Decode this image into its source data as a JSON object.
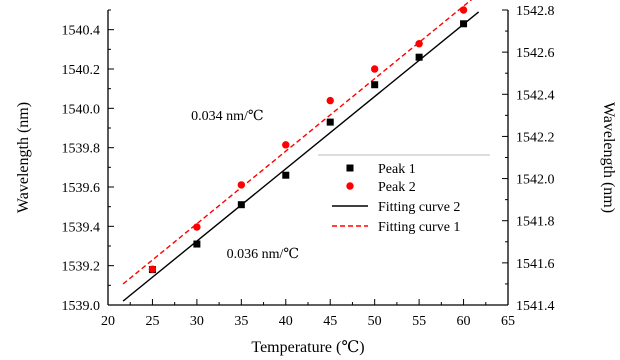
{
  "chart_data": {
    "type": "scatter",
    "title": "",
    "xlabel": "Temperature (℃)",
    "ylabel": "Wavelength (nm)",
    "y2label": "Wavelength (nm)",
    "xlim": [
      20,
      65
    ],
    "ylim": [
      1539.0,
      1540.5
    ],
    "y2lim": [
      1541.4,
      1542.8
    ],
    "grid": false,
    "legend_position": "center-right",
    "x_ticks": [
      "20",
      "25",
      "30",
      "35",
      "40",
      "45",
      "50",
      "55",
      "60",
      "65"
    ],
    "y_ticks": [
      "1539.0",
      "1539.2",
      "1539.4",
      "1539.6",
      "1539.8",
      "1540.0",
      "1540.2",
      "1540.4"
    ],
    "y2_ticks": [
      "1541.4",
      "1541.6",
      "1541.8",
      "1542.0",
      "1542.2",
      "1542.4",
      "1542.6",
      "1542.8"
    ],
    "series": [
      {
        "name": "Peak 1",
        "kind": "scatter",
        "marker": "square",
        "color": "#000000",
        "axis": "left",
        "x": [
          25,
          30,
          35,
          40,
          45,
          50,
          55,
          60
        ],
        "y": [
          1539.18,
          1539.31,
          1539.51,
          1539.66,
          1539.93,
          1540.12,
          1540.26,
          1540.43
        ]
      },
      {
        "name": "Peak 2",
        "kind": "scatter",
        "marker": "circle",
        "color": "#ff0000",
        "axis": "right",
        "x": [
          25,
          30,
          35,
          40,
          45,
          50,
          55,
          60
        ],
        "y": [
          1541.57,
          1541.77,
          1541.97,
          1542.16,
          1542.37,
          1542.52,
          1542.64,
          1542.8
        ]
      },
      {
        "name": "Fitting curve 2",
        "kind": "line",
        "style": "solid",
        "color": "#000000",
        "axis": "left",
        "x": [
          21.7,
          61.7
        ],
        "y": [
          1539.02,
          1540.49
        ]
      },
      {
        "name": "Fitting curve 1",
        "kind": "line",
        "style": "dashed",
        "color": "#ff0000",
        "axis": "right",
        "x": [
          21.7,
          61.5
        ],
        "y": [
          1541.5,
          1542.87
        ]
      }
    ],
    "annotations": [
      {
        "text": "0.034 nm/℃",
        "x": 37.5,
        "y": 1539.94
      },
      {
        "text": "0.036 nm/℃",
        "x": 41.5,
        "y": 1539.24
      }
    ]
  }
}
